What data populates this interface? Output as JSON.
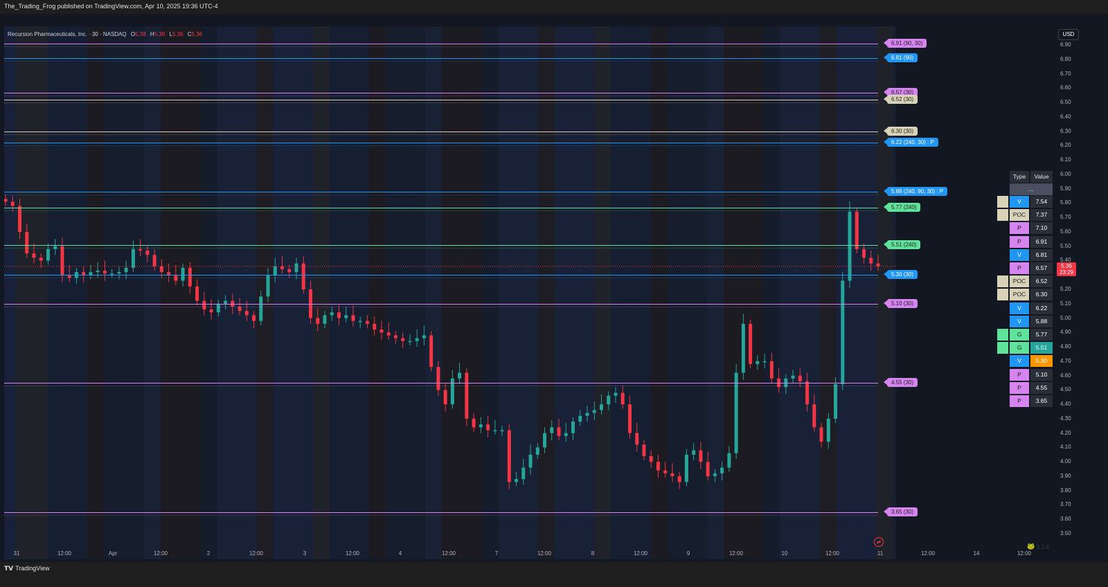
{
  "header": {
    "published": "The_Trading_Frog published on TradingView.com, Apr 10, 2025 19:36 UTC-4"
  },
  "legend": {
    "symbol": "Recursion Pharmaceuticals, Inc. · 30 · NASDAQ",
    "o_label": "O",
    "o_value": "5.38",
    "h_label": "H",
    "h_value": "5.38",
    "l_label": "L",
    "l_value": "5.36",
    "c_label": "C",
    "c_value": "5.36"
  },
  "currency": "USD",
  "last_price": {
    "price": "5.36",
    "countdown": "23:29",
    "value": 5.36
  },
  "price_axis": {
    "min": 3.5,
    "max": 6.9,
    "ticks": [
      "6.90",
      "6.80",
      "6.70",
      "6.60",
      "6.50",
      "6.40",
      "6.30",
      "6.20",
      "6.10",
      "6.00",
      "5.90",
      "5.80",
      "5.70",
      "5.60",
      "5.50",
      "5.40",
      "5.30",
      "5.20",
      "5.10",
      "5.00",
      "4.90",
      "4.80",
      "4.70",
      "4.60",
      "4.50",
      "4.40",
      "4.30",
      "4.20",
      "4.10",
      "4.00",
      "3.90",
      "3.80",
      "3.70",
      "3.60",
      "3.50"
    ]
  },
  "time_axis": {
    "ticks": [
      "31",
      "12:00",
      "Apr",
      "12:00",
      "2",
      "12:00",
      "3",
      "12:00",
      "4",
      "12:00",
      "7",
      "12:00",
      "8",
      "12:00",
      "9",
      "12:00",
      "10",
      "12:00",
      "11",
      "12:00",
      "14",
      "12:00"
    ]
  },
  "levels": [
    {
      "price": 6.91,
      "label": "6.91 (90, 30)",
      "color": "#d685f0",
      "style": "solid"
    },
    {
      "price": 6.81,
      "label": "6.81 (90)",
      "color": "#2196f3",
      "style": "solid"
    },
    {
      "price": 6.57,
      "label": "6.57 (30)",
      "color": "#d685f0",
      "style": "solid"
    },
    {
      "price": 6.52,
      "label": "6.52 (30)",
      "color": "#d8d3b8",
      "style": "solid"
    },
    {
      "price": 6.3,
      "label": "6.30 (30)",
      "color": "#d8d3b8",
      "style": "solid"
    },
    {
      "price": 6.22,
      "label": "6.22 (240, 30) : P",
      "color": "#2196f3",
      "style": "solid"
    },
    {
      "price": 5.88,
      "label": "5.88 (240, 90, 30) : P",
      "color": "#2196f3",
      "style": "solid"
    },
    {
      "price": 5.77,
      "label": "5.77 (240)",
      "color": "#5fe39a",
      "style": "solid"
    },
    {
      "price": 5.51,
      "label": "5.51 (240)",
      "color": "#5fe39a",
      "style": "solid"
    },
    {
      "price": 5.3,
      "label": "5.30 (30)",
      "color": "#2196f3",
      "style": "solid"
    },
    {
      "price": 5.1,
      "label": "5.10 (30)",
      "color": "#d685f0",
      "style": "solid"
    },
    {
      "price": 4.55,
      "label": "4.55 (30)",
      "color": "#d685f0",
      "style": "solid"
    },
    {
      "price": 3.65,
      "label": "3.65 (30)",
      "color": "#d685f0",
      "style": "solid"
    }
  ],
  "table": {
    "header_type": "Type",
    "header_value": "Value",
    "dots": "...",
    "rows": [
      {
        "type": "V",
        "value": "7.54",
        "swatch": "#d8d3b8",
        "type_color": "#2196f3",
        "value_bg": "#2a2e39"
      },
      {
        "type": "POC",
        "value": "7.37",
        "swatch": "#d8d3b8",
        "type_color": "#d8d3b8",
        "value_bg": "#2a2e39"
      },
      {
        "type": "P",
        "value": "7.10",
        "swatch": "",
        "type_color": "#d685f0",
        "value_bg": "#2a2e39"
      },
      {
        "type": "P",
        "value": "6.91",
        "swatch": "",
        "type_color": "#d685f0",
        "value_bg": "#2a2e39"
      },
      {
        "type": "V",
        "value": "6.81",
        "swatch": "",
        "type_color": "#2196f3",
        "value_bg": "#2a2e39"
      },
      {
        "type": "P",
        "value": "6.57",
        "swatch": "",
        "type_color": "#d685f0",
        "value_bg": "#2a2e39"
      },
      {
        "type": "POC",
        "value": "6.52",
        "swatch": "#d8d3b8",
        "type_color": "#d8d3b8",
        "value_bg": "#2a2e39"
      },
      {
        "type": "POC",
        "value": "6.30",
        "swatch": "#d8d3b8",
        "type_color": "#d8d3b8",
        "value_bg": "#2a2e39"
      },
      {
        "type": "V",
        "value": "6.22",
        "swatch": "",
        "type_color": "#2196f3",
        "value_bg": "#2a2e39"
      },
      {
        "type": "V",
        "value": "5.88",
        "swatch": "",
        "type_color": "#2196f3",
        "value_bg": "#2a2e39"
      },
      {
        "type": "G",
        "value": "5.77",
        "swatch": "#5fe39a",
        "type_color": "#5fe39a",
        "value_bg": "#2a2e39"
      },
      {
        "type": "G",
        "value": "5.51",
        "swatch": "#5fe39a",
        "type_color": "#5fe39a",
        "value_bg": "#26a69a"
      },
      {
        "type": "V",
        "value": "5.30",
        "swatch": "",
        "type_color": "#2196f3",
        "value_bg": "#ff9800"
      },
      {
        "type": "P",
        "value": "5.10",
        "swatch": "",
        "type_color": "#d685f0",
        "value_bg": "#2a2e39"
      },
      {
        "type": "P",
        "value": "4.55",
        "swatch": "",
        "type_color": "#d685f0",
        "value_bg": "#2a2e39"
      },
      {
        "type": "P",
        "value": "3.65",
        "swatch": "",
        "type_color": "#d685f0",
        "value_bg": "#2a2e39"
      }
    ]
  },
  "version": "2.1.4",
  "footer": {
    "logo": "TradingView"
  },
  "colors": {
    "up": "#26a69a",
    "down": "#f23645",
    "background": "#131722"
  },
  "chart_data": {
    "type": "candlestick",
    "interval": "30",
    "closes": [
      5.81,
      5.78,
      5.6,
      5.45,
      5.42,
      5.4,
      5.48,
      5.5,
      5.3,
      5.28,
      5.32,
      5.3,
      5.32,
      5.33,
      5.31,
      5.31,
      5.32,
      5.35,
      5.48,
      5.47,
      5.44,
      5.36,
      5.32,
      5.3,
      5.26,
      5.35,
      5.22,
      5.12,
      5.06,
      5.04,
      5.1,
      5.12,
      5.08,
      5.05,
      5.02,
      4.98,
      5.15,
      5.3,
      5.36,
      5.34,
      5.32,
      5.38,
      5.2,
      5.0,
      4.96,
      5.02,
      5.04,
      5.0,
      5.02,
      4.98,
      4.98,
      4.96,
      4.92,
      4.9,
      4.88,
      4.86,
      4.84,
      4.84,
      4.86,
      4.88,
      4.66,
      4.5,
      4.4,
      4.58,
      4.62,
      4.3,
      4.24,
      4.26,
      4.22,
      4.22,
      4.22,
      3.86,
      3.88,
      3.96,
      4.05,
      4.1,
      4.2,
      4.24,
      4.18,
      4.2,
      4.28,
      4.32,
      4.34,
      4.36,
      4.4,
      4.46,
      4.48,
      4.4,
      4.2,
      4.12,
      4.04,
      4.0,
      3.94,
      3.92,
      3.9,
      3.86,
      4.05,
      4.08,
      4.0,
      3.9,
      3.92,
      3.96,
      4.06,
      4.62,
      4.96,
      4.68,
      4.7,
      4.7,
      4.58,
      4.52,
      4.58,
      4.6,
      4.56,
      4.4,
      4.24,
      4.14,
      4.3,
      4.54,
      5.26,
      5.74,
      5.48,
      5.42,
      5.38,
      5.36
    ]
  }
}
